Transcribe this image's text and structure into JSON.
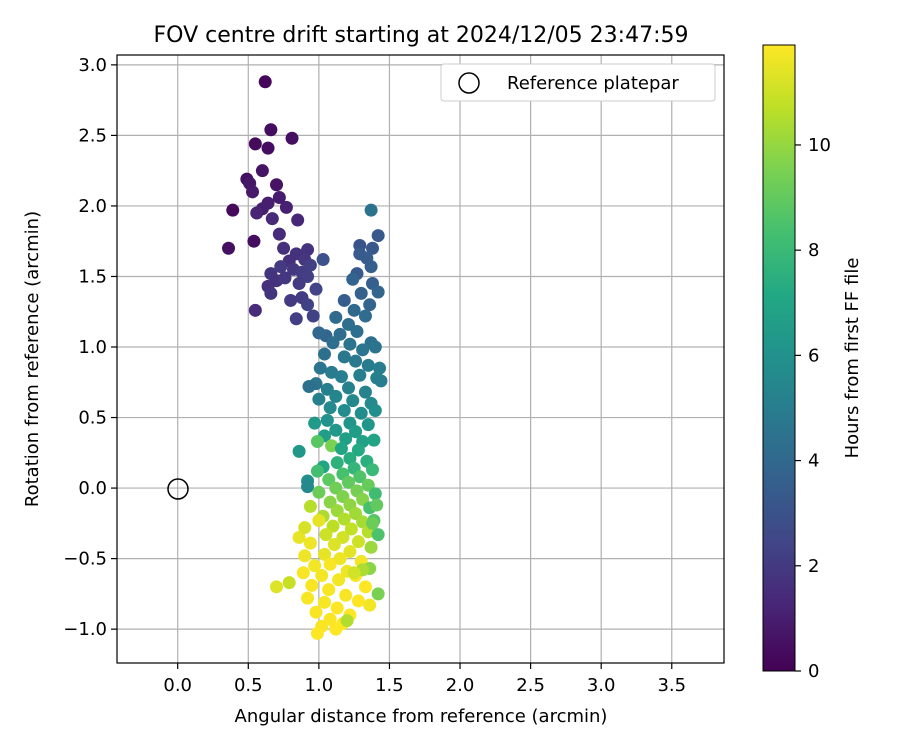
{
  "chart_data": {
    "type": "scatter",
    "title": "FOV centre drift starting at 2024/12/05 23:47:59",
    "xlabel": "Angular distance from reference (arcmin)",
    "ylabel": "Rotation from reference (arcmin)",
    "xlim": [
      -0.43,
      3.87
    ],
    "ylim": [
      -1.24,
      3.07
    ],
    "xticks": [
      0.0,
      0.5,
      1.0,
      1.5,
      2.0,
      2.5,
      3.0,
      3.5
    ],
    "yticks": [
      -1.0,
      -0.5,
      0.0,
      0.5,
      1.0,
      1.5,
      2.0,
      2.5,
      3.0
    ],
    "xtick_labels": [
      "0.0",
      "0.5",
      "1.0",
      "1.5",
      "2.0",
      "2.5",
      "3.0",
      "3.5"
    ],
    "ytick_labels": [
      "−1.0",
      "−0.5",
      "0.0",
      "0.5",
      "1.0",
      "1.5",
      "2.0",
      "2.5",
      "3.0"
    ],
    "grid": true,
    "legend": {
      "position": "top-right",
      "entries": [
        "Reference platepar"
      ]
    },
    "colorbar": {
      "label": "Hours from first FF file",
      "range": [
        0,
        11.9
      ],
      "ticks": [
        0,
        2,
        4,
        6,
        8,
        10
      ],
      "tick_labels": [
        "0",
        "2",
        "4",
        "6",
        "8",
        "10"
      ],
      "colormap": "viridis"
    },
    "reference_point": {
      "x": 0.0,
      "y": 0.0,
      "label": "Reference platepar"
    },
    "series": [
      {
        "colored_by": "hours",
        "points": [
          [
            0.62,
            2.88,
            0.2
          ],
          [
            0.66,
            2.54,
            0.4
          ],
          [
            0.81,
            2.48,
            0.5
          ],
          [
            0.55,
            2.44,
            0.3
          ],
          [
            0.64,
            2.41,
            0.4
          ],
          [
            0.6,
            2.25,
            0.6
          ],
          [
            0.49,
            2.19,
            0.5
          ],
          [
            0.51,
            2.16,
            0.7
          ],
          [
            0.7,
            2.15,
            0.6
          ],
          [
            0.53,
            2.1,
            0.8
          ],
          [
            0.72,
            2.06,
            0.9
          ],
          [
            0.64,
            2.02,
            1.0
          ],
          [
            0.77,
            1.99,
            1.1
          ],
          [
            0.39,
            1.97,
            0.3
          ],
          [
            0.6,
            1.98,
            1.0
          ],
          [
            0.56,
            1.95,
            1.2
          ],
          [
            0.67,
            1.91,
            1.4
          ],
          [
            0.85,
            1.9,
            1.3
          ],
          [
            0.72,
            1.8,
            1.5
          ],
          [
            0.54,
            1.75,
            0.4
          ],
          [
            0.36,
            1.7,
            0.5
          ],
          [
            0.75,
            1.7,
            1.6
          ],
          [
            0.92,
            1.69,
            1.8
          ],
          [
            0.84,
            1.66,
            1.7
          ],
          [
            0.9,
            1.62,
            1.9
          ],
          [
            0.79,
            1.61,
            1.6
          ],
          [
            0.66,
            1.52,
            1.8
          ],
          [
            0.73,
            1.57,
            2.0
          ],
          [
            0.82,
            1.55,
            1.9
          ],
          [
            0.88,
            1.53,
            2.1
          ],
          [
            0.94,
            1.58,
            2.2
          ],
          [
            0.7,
            1.47,
            1.7
          ],
          [
            0.76,
            1.49,
            1.9
          ],
          [
            0.64,
            1.43,
            1.6
          ],
          [
            0.86,
            1.45,
            2.0
          ],
          [
            0.92,
            1.5,
            2.2
          ],
          [
            0.66,
            1.38,
            1.8
          ],
          [
            0.8,
            1.33,
            2.0
          ],
          [
            0.88,
            1.35,
            2.1
          ],
          [
            0.98,
            1.41,
            2.4
          ],
          [
            0.55,
            1.26,
            1.5
          ],
          [
            0.84,
            1.2,
            2.2
          ],
          [
            0.96,
            1.22,
            2.3
          ],
          [
            0.92,
            1.3,
            2.3
          ],
          [
            1.03,
            1.62,
            3.0
          ],
          [
            1.37,
            1.97,
            4.5
          ],
          [
            1.42,
            1.79,
            3.3
          ],
          [
            1.38,
            1.7,
            3.2
          ],
          [
            1.29,
            1.72,
            3.1
          ],
          [
            1.29,
            1.66,
            3.4
          ],
          [
            1.34,
            1.63,
            3.5
          ],
          [
            1.37,
            1.57,
            3.6
          ],
          [
            1.27,
            1.52,
            3.3
          ],
          [
            1.24,
            1.48,
            3.8
          ],
          [
            1.38,
            1.45,
            3.6
          ],
          [
            1.42,
            1.39,
            3.9
          ],
          [
            1.3,
            1.38,
            3.7
          ],
          [
            1.18,
            1.33,
            3.5
          ],
          [
            1.36,
            1.3,
            3.8
          ],
          [
            1.25,
            1.26,
            4.0
          ],
          [
            1.12,
            1.21,
            4.1
          ],
          [
            1.33,
            1.22,
            4.2
          ],
          [
            1.21,
            1.16,
            4.3
          ],
          [
            1.15,
            1.09,
            4.2
          ],
          [
            1.27,
            1.11,
            4.4
          ],
          [
            1.05,
            1.08,
            3.9
          ],
          [
            1.0,
            1.1,
            4.0
          ],
          [
            1.37,
            1.03,
            4.4
          ],
          [
            1.4,
            1.0,
            4.5
          ],
          [
            1.31,
            0.98,
            4.6
          ],
          [
            1.22,
            1.02,
            4.5
          ],
          [
            1.1,
            1.03,
            4.3
          ],
          [
            1.04,
            0.95,
            4.4
          ],
          [
            1.18,
            0.93,
            4.7
          ],
          [
            1.26,
            0.9,
            4.8
          ],
          [
            1.35,
            0.87,
            4.9
          ],
          [
            1.43,
            0.85,
            5.0
          ],
          [
            1.01,
            0.85,
            4.6
          ],
          [
            1.09,
            0.82,
            4.9
          ],
          [
            1.16,
            0.79,
            5.0
          ],
          [
            1.29,
            0.8,
            5.1
          ],
          [
            1.41,
            0.78,
            5.2
          ],
          [
            1.44,
            0.76,
            5.0
          ],
          [
            0.98,
            0.74,
            4.5
          ],
          [
            0.93,
            0.72,
            4.4
          ],
          [
            1.06,
            0.7,
            5.1
          ],
          [
            1.21,
            0.71,
            5.2
          ],
          [
            1.33,
            0.68,
            5.3
          ],
          [
            1.12,
            0.65,
            5.4
          ],
          [
            1.0,
            0.63,
            5.2
          ],
          [
            1.24,
            0.62,
            5.5
          ],
          [
            1.37,
            0.6,
            5.6
          ],
          [
            1.08,
            0.57,
            5.6
          ],
          [
            1.18,
            0.55,
            5.7
          ],
          [
            1.3,
            0.53,
            5.8
          ],
          [
            1.4,
            0.55,
            5.9
          ],
          [
            1.06,
            0.48,
            6.0
          ],
          [
            0.97,
            0.46,
            6.4
          ],
          [
            1.22,
            0.46,
            6.1
          ],
          [
            1.35,
            0.45,
            6.2
          ],
          [
            1.12,
            0.41,
            6.3
          ],
          [
            1.26,
            0.4,
            6.5
          ],
          [
            1.04,
            0.37,
            6.6
          ],
          [
            1.19,
            0.35,
            6.7
          ],
          [
            1.31,
            0.33,
            6.8
          ],
          [
            1.39,
            0.34,
            6.9
          ],
          [
            0.99,
            0.33,
            8.8
          ],
          [
            1.09,
            0.3,
            9.5
          ],
          [
            1.16,
            0.28,
            7.0
          ],
          [
            1.28,
            0.27,
            7.2
          ],
          [
            0.86,
            0.26,
            6.2
          ],
          [
            1.22,
            0.21,
            7.4
          ],
          [
            1.34,
            0.19,
            7.5
          ],
          [
            1.13,
            0.18,
            7.6
          ],
          [
            1.03,
            0.15,
            7.0
          ],
          [
            1.25,
            0.14,
            7.8
          ],
          [
            1.38,
            0.13,
            8.0
          ],
          [
            0.99,
            0.12,
            8.3
          ],
          [
            1.17,
            0.1,
            8.4
          ],
          [
            1.29,
            0.08,
            8.6
          ],
          [
            1.07,
            0.06,
            8.9
          ],
          [
            0.92,
            0.05,
            5.8
          ],
          [
            1.21,
            0.04,
            9.0
          ],
          [
            1.35,
            0.02,
            9.1
          ],
          [
            0.92,
            0.01,
            5.5
          ],
          [
            1.12,
            0.0,
            9.3
          ],
          [
            1.27,
            -0.02,
            9.4
          ],
          [
            1.0,
            -0.03,
            9.2
          ],
          [
            1.4,
            -0.04,
            8.2
          ],
          [
            1.17,
            -0.06,
            9.6
          ],
          [
            1.31,
            -0.08,
            9.7
          ],
          [
            1.08,
            -0.1,
            9.8
          ],
          [
            1.22,
            -0.12,
            9.9
          ],
          [
            1.36,
            -0.14,
            8.4
          ],
          [
            1.13,
            -0.16,
            10.1
          ],
          [
            1.26,
            -0.18,
            10.2
          ],
          [
            1.03,
            -0.2,
            10.4
          ],
          [
            1.18,
            -0.22,
            10.5
          ],
          [
            1.31,
            -0.24,
            10.3
          ],
          [
            1.39,
            -0.23,
            8.7
          ],
          [
            1.0,
            -0.23,
            11.5
          ],
          [
            1.1,
            -0.27,
            10.7
          ],
          [
            1.23,
            -0.29,
            10.8
          ],
          [
            1.35,
            -0.31,
            10.6
          ],
          [
            1.42,
            -0.33,
            8.5
          ],
          [
            1.05,
            -0.33,
            11.0
          ],
          [
            1.17,
            -0.35,
            11.1
          ],
          [
            0.86,
            -0.35,
            11.5
          ],
          [
            1.28,
            -0.38,
            11.0
          ],
          [
            1.11,
            -0.4,
            11.3
          ],
          [
            0.94,
            -0.39,
            11.6
          ],
          [
            1.37,
            -0.42,
            10.1
          ],
          [
            1.22,
            -0.45,
            11.4
          ],
          [
            1.04,
            -0.47,
            11.5
          ],
          [
            0.9,
            -0.48,
            11.6
          ],
          [
            1.15,
            -0.5,
            11.6
          ],
          [
            1.3,
            -0.52,
            11.7
          ],
          [
            0.97,
            -0.55,
            11.7
          ],
          [
            1.08,
            -0.54,
            11.8
          ],
          [
            1.36,
            -0.57,
            9.8
          ],
          [
            1.2,
            -0.59,
            11.6
          ],
          [
            0.89,
            -0.6,
            11.8
          ],
          [
            1.02,
            -0.62,
            11.7
          ],
          [
            1.26,
            -0.62,
            11.8
          ],
          [
            1.14,
            -0.65,
            11.7
          ],
          [
            0.79,
            -0.67,
            10.9
          ],
          [
            0.7,
            -0.7,
            11.3
          ],
          [
            0.95,
            -0.69,
            11.8
          ],
          [
            1.33,
            -0.7,
            11.9
          ],
          [
            1.07,
            -0.72,
            11.8
          ],
          [
            1.42,
            -0.75,
            9.5
          ],
          [
            1.19,
            -0.76,
            11.8
          ],
          [
            0.92,
            -0.78,
            11.8
          ],
          [
            1.04,
            -0.81,
            11.8
          ],
          [
            1.28,
            -0.8,
            11.9
          ],
          [
            1.36,
            -0.83,
            11.7
          ],
          [
            1.13,
            -0.85,
            11.9
          ],
          [
            0.98,
            -0.88,
            11.8
          ],
          [
            1.22,
            -0.9,
            11.9
          ],
          [
            1.08,
            -0.93,
            11.8
          ],
          [
            1.17,
            -0.96,
            11.9
          ],
          [
            1.02,
            -0.98,
            11.8
          ],
          [
            0.99,
            -1.03,
            11.9
          ],
          [
            1.12,
            -1.0,
            11.9
          ],
          [
            1.2,
            -0.94,
            10.5
          ],
          [
            1.31,
            -0.58,
            10.4
          ],
          [
            1.25,
            -0.6,
            11.1
          ],
          [
            1.38,
            -0.25,
            9.2
          ],
          [
            1.41,
            -0.12,
            9.0
          ],
          [
            0.94,
            -0.13,
            10.6
          ],
          [
            0.9,
            -0.28,
            11.2
          ]
        ]
      }
    ]
  }
}
